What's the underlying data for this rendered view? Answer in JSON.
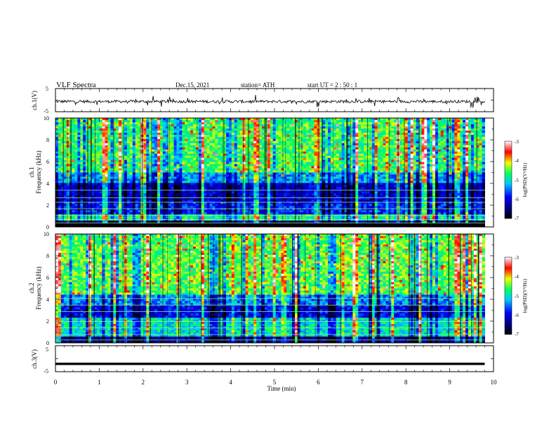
{
  "header": {
    "title": "VLF  Spectra",
    "date": "Dec.15, 2021",
    "station": "station= ATH",
    "start": "start  UT  =   2  : 50 : 1"
  },
  "chart_data": [
    {
      "type": "line",
      "panel": "ch1_waveform",
      "ylabel": "ch.1(V)",
      "yticks": [
        "5",
        "-5"
      ],
      "ylim": [
        -5,
        5
      ],
      "xlim": [
        0,
        10
      ],
      "series_color": "#000000",
      "data_end_min": 9.8
    },
    {
      "type": "heatmap",
      "panel": "ch1_spectrogram",
      "ylabel_top": "ch.1",
      "ylabel": "Frequency  (kHz)",
      "yticks": [
        "0",
        "2",
        "4",
        "6",
        "8",
        "10"
      ],
      "ylim": [
        0,
        10
      ],
      "xlim": [
        0,
        10
      ],
      "data_end_min": 9.8,
      "colorbar": {
        "label": "log(PSD)(V²/Hz)",
        "ticks": [
          "-3",
          "-4",
          "-5",
          "-6",
          "-7"
        ],
        "range": [
          -7,
          -3
        ]
      }
    },
    {
      "type": "heatmap",
      "panel": "ch2_spectrogram",
      "ylabel_top": "ch.2",
      "ylabel": "Frequency  (kHz)",
      "yticks": [
        "0",
        "2",
        "4",
        "6",
        "8",
        "10"
      ],
      "ylim": [
        0,
        10
      ],
      "xlim": [
        0,
        10
      ],
      "data_end_min": 9.8,
      "colorbar": {
        "label": "log(PSD)(V²/Hz)",
        "ticks": [
          "-3",
          "-4",
          "-5",
          "-6",
          "-7"
        ],
        "range": [
          -7,
          -3
        ]
      }
    },
    {
      "type": "line",
      "panel": "ch3_waveform",
      "ylabel": "ch.3(V)",
      "yticks": [
        "5",
        "-5"
      ],
      "ylim": [
        -5,
        5
      ],
      "xlim": [
        0,
        10
      ],
      "level": -2,
      "data_end_min": 9.8,
      "series_color": "#000000"
    }
  ],
  "xaxis": {
    "label": "Time  (min)",
    "ticks": [
      "0",
      "1",
      "2",
      "3",
      "4",
      "5",
      "6",
      "7",
      "8",
      "9",
      "10"
    ]
  }
}
